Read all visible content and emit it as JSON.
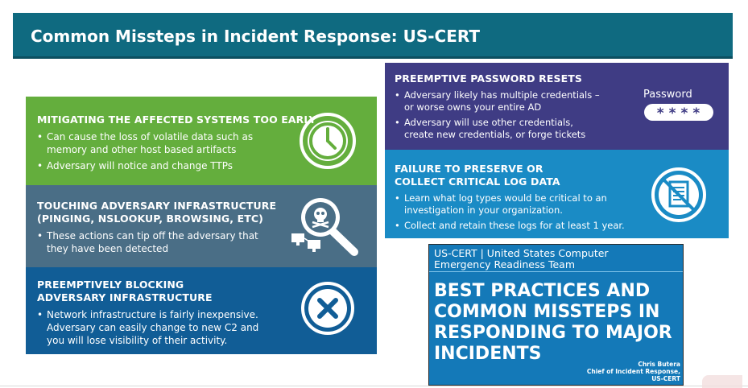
{
  "header": {
    "title": "Common Missteps in Incident Response: US-CERT"
  },
  "panels": {
    "mitigating": {
      "title": "MITIGATING THE AFFECTED SYSTEMS TOO EARLY",
      "bullets": [
        "Can cause the loss of volatile data such as memory and other host based artifacts",
        "Adversary will notice and change TTPs"
      ],
      "icon": "clock-icon"
    },
    "touching": {
      "title_line1": "TOUCHING ADVERSARY INFRASTRUCTURE",
      "title_line2": "(PINGING, NSLOOKUP, BROWSING, ETC)",
      "bullets": [
        "These actions can tip off the adversary that they have been detected"
      ],
      "icon": "magnifier-skull-icon"
    },
    "blocking": {
      "title_line1": "PREEMPTIVELY BLOCKING",
      "title_line2": "ADVERSARY INFRASTRUCTURE",
      "bullets": [
        "Network infrastructure is fairly inexpensive. Adversary can easily change to new C2 and you will lose visibility of their activity."
      ],
      "icon": "x-circle-icon"
    },
    "password": {
      "title": "PREEMPTIVE PASSWORD RESETS",
      "bullets": [
        "Adversary likely has multiple credentials – or worse owns your entire AD",
        "Adversary will use other credentials, create new credentials, or forge tickets"
      ],
      "password_label": "Password",
      "password_mask": "****"
    },
    "logs": {
      "title_line1": "FAILURE TO PRESERVE OR",
      "title_line2": "COLLECT CRITICAL LOG DATA",
      "bullets": [
        "Learn what log types would be critical to an investigation in your organization.",
        "Collect and retain these logs for at least 1 year."
      ],
      "icon": "no-document-icon"
    }
  },
  "cover": {
    "org_line1": "US-CERT | United States Computer",
    "org_line2": "Emergency Readiness Team",
    "headline": "BEST PRACTICES AND COMMON MISSTEPS IN RESPONDING TO MAJOR INCIDENTS",
    "author_name": "Chris Butera",
    "author_role": "Chief of Incident Response,",
    "author_org": "US-CERT"
  },
  "colors": {
    "header": "#0f6a80",
    "green": "#64ae3d",
    "slate": "#4a6e86",
    "blue": "#115d96",
    "purple": "#3f3c84",
    "cyan": "#1a8bc5",
    "cover": "#1479b8"
  }
}
